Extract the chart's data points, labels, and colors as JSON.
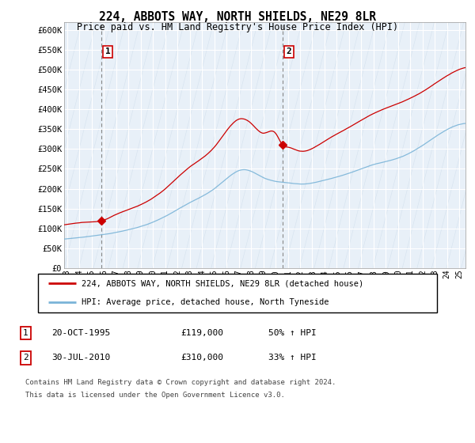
{
  "title": "224, ABBOTS WAY, NORTH SHIELDS, NE29 8LR",
  "subtitle": "Price paid vs. HM Land Registry's House Price Index (HPI)",
  "ylabel_ticks": [
    "£0",
    "£50K",
    "£100K",
    "£150K",
    "£200K",
    "£250K",
    "£300K",
    "£350K",
    "£400K",
    "£450K",
    "£500K",
    "£550K",
    "£600K"
  ],
  "ylim": [
    0,
    620000
  ],
  "xlim_start": 1992.75,
  "xlim_end": 2025.5,
  "sale1_x": 1995.8,
  "sale1_y": 119000,
  "sale1_label": "1",
  "sale2_x": 2010.58,
  "sale2_y": 310000,
  "sale2_label": "2",
  "vline1_x": 1995.8,
  "vline2_x": 2010.58,
  "legend_line1": "224, ABBOTS WAY, NORTH SHIELDS, NE29 8LR (detached house)",
  "legend_line2": "HPI: Average price, detached house, North Tyneside",
  "table_row1": [
    "1",
    "20-OCT-1995",
    "£119,000",
    "50% ↑ HPI"
  ],
  "table_row2": [
    "2",
    "30-JUL-2010",
    "£310,000",
    "33% ↑ HPI"
  ],
  "footer": "Contains HM Land Registry data © Crown copyright and database right 2024.\nThis data is licensed under the Open Government Licence v3.0.",
  "hpi_color": "#7ab4d8",
  "price_color": "#cc0000",
  "vline_color": "#aaaaaa",
  "chart_bg": "#e8f0f8",
  "grid_color": "#ffffff"
}
